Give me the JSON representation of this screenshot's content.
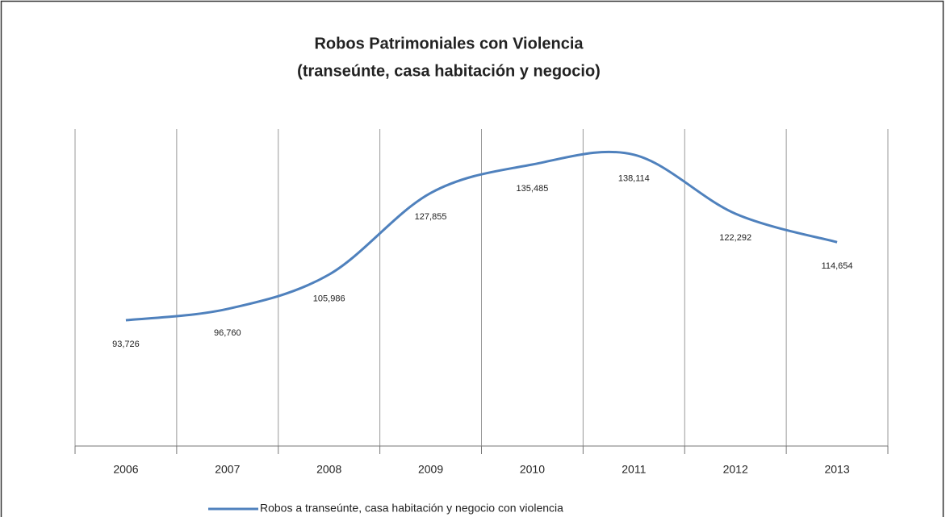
{
  "chart_data": {
    "type": "line",
    "title": "Robos Patrimoniales con Violencia",
    "subtitle": "(transeúnte, casa habitación y negocio)",
    "categories": [
      "2006",
      "2007",
      "2008",
      "2009",
      "2010",
      "2011",
      "2012",
      "2013"
    ],
    "series": [
      {
        "name": "Robos a transeúnte, casa habitación y negocio con violencia",
        "color": "#4f81bd",
        "values": [
          93726,
          96760,
          105986,
          127855,
          135485,
          138114,
          122292,
          114654
        ],
        "value_labels": [
          "93,726",
          "96,760",
          "105,986",
          "127,855",
          "135,485",
          "138,114",
          "122,292",
          "114,654"
        ]
      }
    ],
    "ylim": [
      60000,
      145000
    ],
    "grid": true,
    "legend": "bottom"
  }
}
